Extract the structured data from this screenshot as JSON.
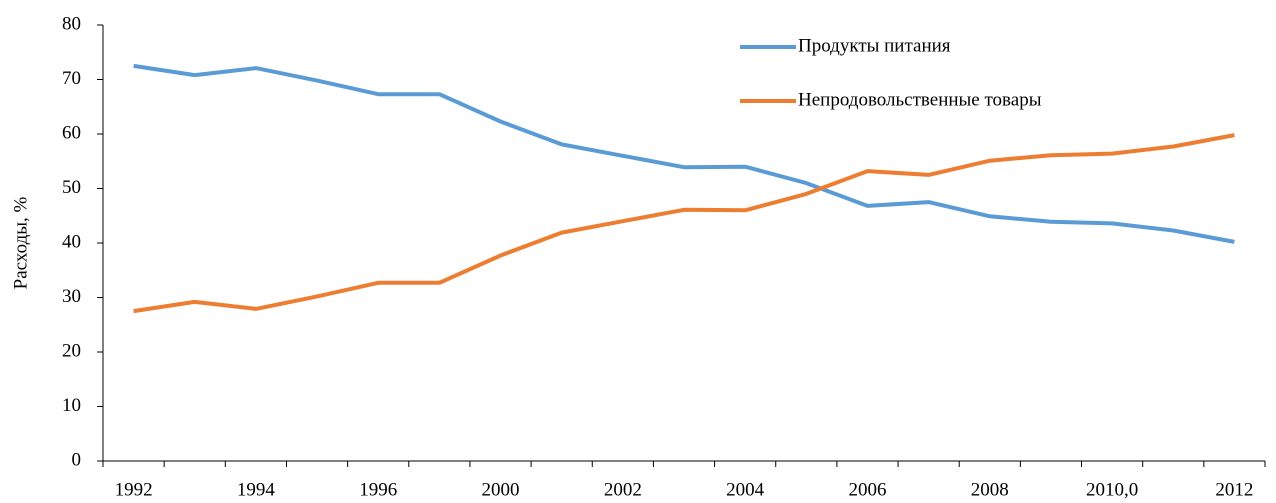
{
  "chart_data": {
    "type": "line",
    "y_label": "Расходы, %",
    "categories": [
      "1992",
      null,
      "1994",
      null,
      "1996",
      null,
      "2000",
      null,
      "2002",
      null,
      "2004",
      null,
      "2006",
      null,
      "2008",
      null,
      "2010,0",
      null,
      "2012"
    ],
    "series": [
      {
        "name": "Продукты питания",
        "color": "#5b9bd5",
        "values": [
          72.5,
          70.8,
          72.1,
          69.8,
          67.3,
          67.3,
          62.3,
          58.1,
          56.0,
          53.9,
          54.0,
          51.0,
          46.8,
          47.5,
          44.9,
          43.9,
          43.6,
          42.3,
          40.2
        ]
      },
      {
        "name": "Непродовольственные товары",
        "color": "#ed7d31",
        "values": [
          27.5,
          29.2,
          27.9,
          30.2,
          32.7,
          32.7,
          37.7,
          41.9,
          44.0,
          46.1,
          46.0,
          49.0,
          53.2,
          52.5,
          55.1,
          56.1,
          56.4,
          57.7,
          59.8
        ]
      }
    ],
    "ylim": [
      0,
      80
    ],
    "yticks": [
      0,
      10,
      20,
      30,
      40,
      50,
      60,
      70,
      80
    ],
    "legend": "upper right",
    "grid": false
  }
}
